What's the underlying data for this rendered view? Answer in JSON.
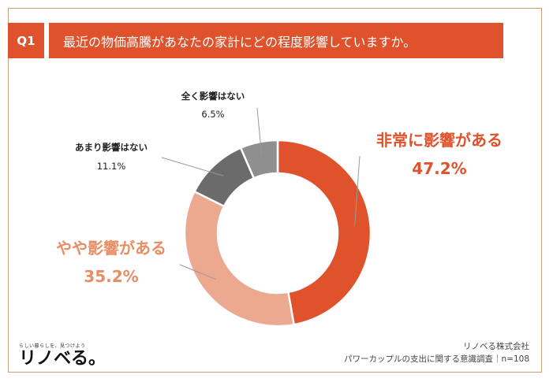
{
  "question": {
    "label": "Q1",
    "text": "最近の物価高騰があなたの家計にどの程度影響していますか。"
  },
  "colors": {
    "accent": "#e0522c",
    "frame": "#c9a07a"
  },
  "chart_data": {
    "type": "pie",
    "donut": true,
    "series": [
      {
        "label": "非常に影響がある",
        "value": 47.2,
        "value_label": "47.2%",
        "color": "#e0522c",
        "label_color": "#e0522c"
      },
      {
        "label": "やや影響がある",
        "value": 35.2,
        "value_label": "35.2%",
        "color": "#eda98f",
        "label_color": "#e98e64"
      },
      {
        "label": "あまり影響はない",
        "value": 11.1,
        "value_label": "11.1%",
        "color": "#6b6b6b",
        "label_color": "#222222"
      },
      {
        "label": "全く影響はない",
        "value": 6.5,
        "value_label": "6.5%",
        "color": "#8f8f8f",
        "label_color": "#222222"
      }
    ]
  },
  "logo": {
    "tagline": "らしい暮らしを、見つけよう",
    "name": "リノベる。"
  },
  "footer": {
    "company": "リノベる株式会社",
    "survey": "パワーカップルの支出に関する意識調査｜n=108"
  }
}
